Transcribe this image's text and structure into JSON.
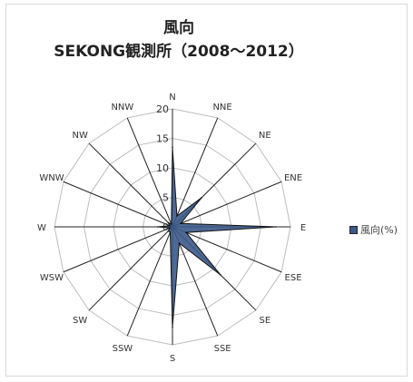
{
  "chart_data": {
    "type": "radar",
    "title": "風向",
    "subtitle": "SEKONG観測所（2008～2012）",
    "directions": [
      "N",
      "NNE",
      "NE",
      "ENE",
      "E",
      "ESE",
      "SE",
      "SSE",
      "S",
      "SSW",
      "SW",
      "WSW",
      "W",
      "WNW",
      "NW",
      "NNW"
    ],
    "radial_ticks": [
      "0",
      "5",
      "10",
      "15",
      "20"
    ],
    "rmax": 20,
    "series": [
      {
        "name": "風向(%)",
        "values": [
          13.5,
          2.0,
          7.0,
          1.5,
          17.5,
          2.5,
          11.5,
          3.0,
          17.0,
          1.0,
          1.0,
          0.5,
          2.5,
          0.5,
          1.0,
          0.5
        ],
        "color": "#3b5a88"
      }
    ],
    "legend_position": "right",
    "grid": true
  }
}
